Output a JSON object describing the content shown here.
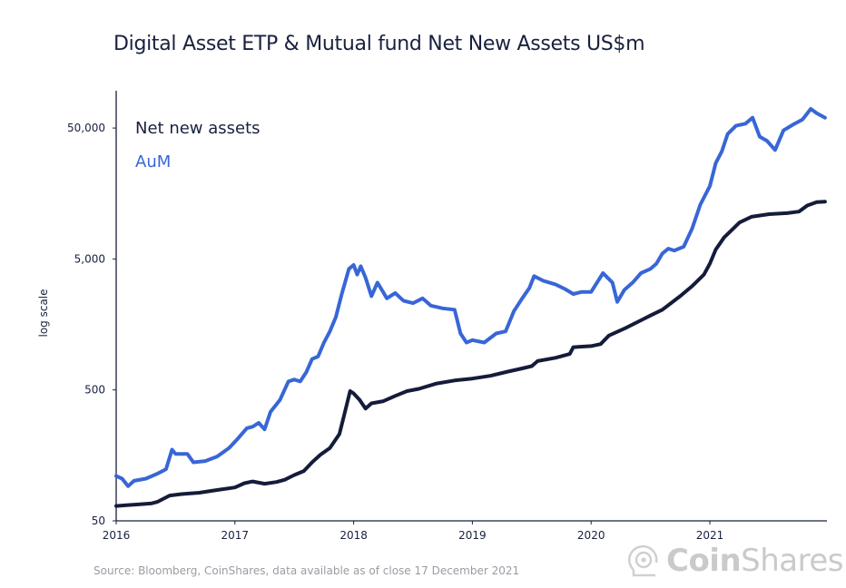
{
  "chart_data": {
    "type": "line",
    "title": "Digital Asset ETP & Mutual fund Net New Assets US$m",
    "xlabel": "",
    "ylabel": "log scale",
    "y_scale": "log",
    "ylim": [
      50,
      80000
    ],
    "xlim": [
      2016.0,
      2021.97
    ],
    "y_ticks": [
      {
        "value": 50000,
        "label": "50,000"
      },
      {
        "value": 5000,
        "label": "5,000"
      },
      {
        "value": 500,
        "label": "500"
      },
      {
        "value": 50,
        "label": "50"
      }
    ],
    "x_ticks": [
      {
        "value": 2016,
        "label": "2016"
      },
      {
        "value": 2017,
        "label": "2017"
      },
      {
        "value": 2018,
        "label": "2018"
      },
      {
        "value": 2019,
        "label": "2019"
      },
      {
        "value": 2020,
        "label": "2020"
      },
      {
        "value": 2021,
        "label": "2021"
      }
    ],
    "grid": false,
    "legend_position": "top-left",
    "series": [
      {
        "name": "Net new assets",
        "color": "#141c3a",
        "points": [
          [
            2016.0,
            65
          ],
          [
            2016.1,
            66
          ],
          [
            2016.2,
            67
          ],
          [
            2016.3,
            68
          ],
          [
            2016.35,
            70
          ],
          [
            2016.45,
            78
          ],
          [
            2016.55,
            80
          ],
          [
            2016.7,
            82
          ],
          [
            2016.85,
            86
          ],
          [
            2017.0,
            90
          ],
          [
            2017.08,
            97
          ],
          [
            2017.15,
            100
          ],
          [
            2017.25,
            96
          ],
          [
            2017.35,
            99
          ],
          [
            2017.42,
            103
          ],
          [
            2017.5,
            112
          ],
          [
            2017.58,
            120
          ],
          [
            2017.65,
            140
          ],
          [
            2017.72,
            160
          ],
          [
            2017.8,
            180
          ],
          [
            2017.88,
            230
          ],
          [
            2017.92,
            320
          ],
          [
            2017.97,
            490
          ],
          [
            2018.0,
            470
          ],
          [
            2018.05,
            420
          ],
          [
            2018.1,
            360
          ],
          [
            2018.15,
            395
          ],
          [
            2018.25,
            410
          ],
          [
            2018.35,
            450
          ],
          [
            2018.45,
            490
          ],
          [
            2018.55,
            510
          ],
          [
            2018.7,
            560
          ],
          [
            2018.85,
            590
          ],
          [
            2019.0,
            610
          ],
          [
            2019.15,
            640
          ],
          [
            2019.3,
            690
          ],
          [
            2019.42,
            730
          ],
          [
            2019.5,
            760
          ],
          [
            2019.55,
            830
          ],
          [
            2019.7,
            880
          ],
          [
            2019.82,
            940
          ],
          [
            2019.85,
            1060
          ],
          [
            2020.0,
            1080
          ],
          [
            2020.08,
            1120
          ],
          [
            2020.15,
            1300
          ],
          [
            2020.3,
            1500
          ],
          [
            2020.42,
            1700
          ],
          [
            2020.5,
            1850
          ],
          [
            2020.6,
            2050
          ],
          [
            2020.75,
            2600
          ],
          [
            2020.85,
            3100
          ],
          [
            2020.95,
            3800
          ],
          [
            2021.0,
            4600
          ],
          [
            2021.05,
            5900
          ],
          [
            2021.12,
            7300
          ],
          [
            2021.25,
            9500
          ],
          [
            2021.35,
            10500
          ],
          [
            2021.5,
            11000
          ],
          [
            2021.65,
            11200
          ],
          [
            2021.75,
            11500
          ],
          [
            2021.82,
            12800
          ],
          [
            2021.9,
            13600
          ],
          [
            2021.97,
            13700
          ]
        ]
      },
      {
        "name": "AuM",
        "color": "#3866d6",
        "points": [
          [
            2016.0,
            110
          ],
          [
            2016.05,
            105
          ],
          [
            2016.1,
            92
          ],
          [
            2016.15,
            101
          ],
          [
            2016.25,
            105
          ],
          [
            2016.35,
            115
          ],
          [
            2016.42,
            124
          ],
          [
            2016.47,
            175
          ],
          [
            2016.5,
            162
          ],
          [
            2016.6,
            162
          ],
          [
            2016.65,
            140
          ],
          [
            2016.75,
            143
          ],
          [
            2016.85,
            155
          ],
          [
            2016.95,
            180
          ],
          [
            2017.02,
            210
          ],
          [
            2017.1,
            255
          ],
          [
            2017.15,
            262
          ],
          [
            2017.2,
            280
          ],
          [
            2017.25,
            250
          ],
          [
            2017.3,
            340
          ],
          [
            2017.38,
            420
          ],
          [
            2017.45,
            580
          ],
          [
            2017.5,
            600
          ],
          [
            2017.55,
            580
          ],
          [
            2017.6,
            680
          ],
          [
            2017.65,
            860
          ],
          [
            2017.7,
            900
          ],
          [
            2017.75,
            1150
          ],
          [
            2017.8,
            1400
          ],
          [
            2017.85,
            1800
          ],
          [
            2017.9,
            2700
          ],
          [
            2017.96,
            4200
          ],
          [
            2018.0,
            4500
          ],
          [
            2018.03,
            3800
          ],
          [
            2018.06,
            4400
          ],
          [
            2018.1,
            3600
          ],
          [
            2018.15,
            2600
          ],
          [
            2018.2,
            3300
          ],
          [
            2018.28,
            2500
          ],
          [
            2018.35,
            2750
          ],
          [
            2018.42,
            2400
          ],
          [
            2018.5,
            2300
          ],
          [
            2018.58,
            2500
          ],
          [
            2018.65,
            2200
          ],
          [
            2018.75,
            2100
          ],
          [
            2018.85,
            2050
          ],
          [
            2018.9,
            1350
          ],
          [
            2018.95,
            1150
          ],
          [
            2019.0,
            1200
          ],
          [
            2019.1,
            1150
          ],
          [
            2019.2,
            1350
          ],
          [
            2019.28,
            1400
          ],
          [
            2019.35,
            2000
          ],
          [
            2019.42,
            2500
          ],
          [
            2019.48,
            3000
          ],
          [
            2019.52,
            3700
          ],
          [
            2019.6,
            3400
          ],
          [
            2019.7,
            3200
          ],
          [
            2019.78,
            2950
          ],
          [
            2019.85,
            2700
          ],
          [
            2019.92,
            2800
          ],
          [
            2020.0,
            2800
          ],
          [
            2020.05,
            3300
          ],
          [
            2020.1,
            3900
          ],
          [
            2020.18,
            3300
          ],
          [
            2020.22,
            2350
          ],
          [
            2020.28,
            2900
          ],
          [
            2020.35,
            3300
          ],
          [
            2020.42,
            3900
          ],
          [
            2020.5,
            4200
          ],
          [
            2020.55,
            4600
          ],
          [
            2020.6,
            5500
          ],
          [
            2020.65,
            6000
          ],
          [
            2020.7,
            5800
          ],
          [
            2020.78,
            6200
          ],
          [
            2020.85,
            8500
          ],
          [
            2020.92,
            13000
          ],
          [
            2021.0,
            18000
          ],
          [
            2021.05,
            27000
          ],
          [
            2021.1,
            33000
          ],
          [
            2021.15,
            45000
          ],
          [
            2021.22,
            52000
          ],
          [
            2021.3,
            54000
          ],
          [
            2021.36,
            60000
          ],
          [
            2021.42,
            43000
          ],
          [
            2021.48,
            40000
          ],
          [
            2021.55,
            34000
          ],
          [
            2021.62,
            48000
          ],
          [
            2021.7,
            53000
          ],
          [
            2021.78,
            58000
          ],
          [
            2021.85,
            70000
          ],
          [
            2021.9,
            65000
          ],
          [
            2021.97,
            60000
          ]
        ]
      }
    ],
    "source": "Source: Bloomberg, CoinShares, data available as of close 17 December 2021"
  },
  "logo": {
    "bold": "Coin",
    "light": "Shares",
    "icon": "astronaut-helmet-icon"
  }
}
